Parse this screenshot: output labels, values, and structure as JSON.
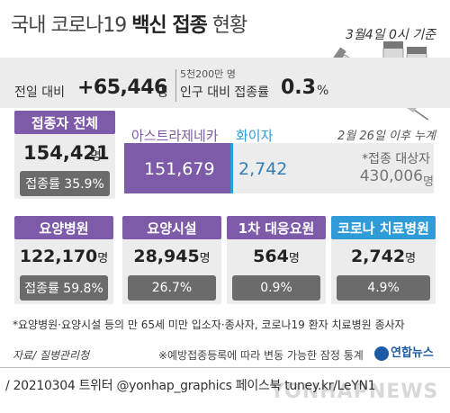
{
  "header": {
    "title_prefix": "국내 코로나19 ",
    "title_bold": "백신 접종",
    "title_suffix": " 현황",
    "date": "3월4일 0시 기준"
  },
  "summary": {
    "prev_day_label": "전일 대비",
    "prev_day_value": "+65,446",
    "prev_day_unit": "명",
    "population_note": "5천200만 명",
    "population_label": "인구 대비 접종률",
    "population_rate": "0.3",
    "population_rate_unit": "%"
  },
  "total": {
    "label": "접종자 전체",
    "count": "154,421",
    "unit": "명",
    "rate_text": "접종률 35.9%"
  },
  "chart_data": {
    "type": "bar",
    "orientation": "horizontal-stacked",
    "categories": [
      "아스트라제네카",
      "화이자"
    ],
    "values": [
      151679,
      2742
    ],
    "value_labels": [
      "151,679",
      "2,742"
    ],
    "total_target": 430006,
    "note": "2월 26일 이후 누계",
    "target_label": "*접종 대상자",
    "target_value": "430,006",
    "target_unit": "명",
    "colors": [
      "#7e5ba8",
      "#2f9bd8"
    ]
  },
  "categories": [
    {
      "label": "요양병원",
      "count": "122,170",
      "unit": "명",
      "rate": "접종률 59.8%",
      "color": "#7e5ba8"
    },
    {
      "label": "요양시설",
      "count": "28,945",
      "unit": "명",
      "rate": "26.7%",
      "color": "#7e5ba8"
    },
    {
      "label": "1차 대응요원",
      "count": "564",
      "unit": "명",
      "rate": "0.9%",
      "color": "#7e5ba8"
    },
    {
      "label": "코로나 치료병원",
      "count": "2,742",
      "unit": "명",
      "rate": "4.9%",
      "color": "#2f9bd8"
    }
  ],
  "footer": {
    "footnote": "*요양병원·요양시설 등의 만 65세 미만 입소자·종사자, 코로나19 환자 치료병원 종사자",
    "source": "자료/ 질병관리청",
    "notice": "※예방접종등록에 따라 변동 가능한 잠정 통계",
    "logo": "연합뉴스",
    "credit": "/ 20210304   트위터 @yonhap_graphics  페이스북 tuney.kr/LeYN1",
    "watermark": "YONHAPNEWS"
  }
}
